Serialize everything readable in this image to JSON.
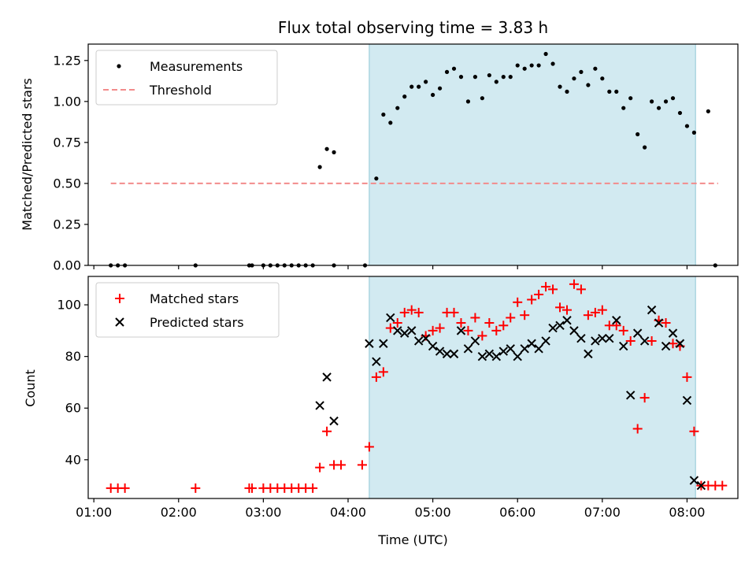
{
  "chart_data": [
    {
      "type": "scatter",
      "title": "Flux total observing time = 3.83 h",
      "xlabel": "",
      "ylabel": "Matched/Predicted stars",
      "xlim": [
        "00:56",
        "08:36"
      ],
      "ylim": [
        0,
        1.35
      ],
      "yticks": [
        "0.00",
        "0.25",
        "0.50",
        "0.75",
        "1.00",
        "1.25"
      ],
      "ytick_values": [
        0,
        0.25,
        0.5,
        0.75,
        1.0,
        1.25
      ],
      "observing_window": [
        "04:15",
        "08:06"
      ],
      "legend_position": "top-left",
      "series": [
        {
          "name": "Measurements",
          "color": "#000000",
          "marker": "dot",
          "x": [
            "01:12",
            "01:17",
            "01:22",
            "02:12",
            "02:50",
            "02:52",
            "03:00",
            "03:05",
            "03:10",
            "03:15",
            "03:20",
            "03:25",
            "03:30",
            "03:35",
            "03:50",
            "04:12",
            "04:20",
            "04:25",
            "04:30",
            "04:35",
            "04:40",
            "04:45",
            "04:50",
            "04:55",
            "05:00",
            "05:05",
            "05:10",
            "05:15",
            "05:20",
            "05:25",
            "05:30",
            "05:35",
            "05:40",
            "05:45",
            "05:50",
            "05:55",
            "06:00",
            "06:05",
            "06:10",
            "06:15",
            "06:20",
            "06:25",
            "06:30",
            "06:35",
            "06:40",
            "06:45",
            "06:50",
            "06:55",
            "07:00",
            "07:05",
            "07:10",
            "07:15",
            "07:20",
            "07:25",
            "07:30",
            "07:35",
            "07:40",
            "07:45",
            "07:50",
            "07:55",
            "08:00",
            "08:05",
            "08:15",
            "08:20",
            "03:40",
            "03:45",
            "03:50"
          ],
          "y": [
            0,
            0,
            0,
            0,
            0,
            0,
            0,
            0,
            0,
            0,
            0,
            0,
            0,
            0,
            0,
            0,
            0.53,
            0.92,
            0.87,
            0.96,
            1.03,
            1.09,
            1.09,
            1.12,
            1.04,
            1.08,
            1.18,
            1.2,
            1.15,
            1.0,
            1.15,
            1.02,
            1.16,
            1.12,
            1.15,
            1.15,
            1.22,
            1.2,
            1.22,
            1.22,
            1.29,
            1.23,
            1.09,
            1.06,
            1.14,
            1.18,
            1.1,
            1.2,
            1.14,
            1.06,
            1.06,
            0.96,
            1.02,
            0.8,
            0.72,
            1.0,
            0.96,
            1.0,
            1.02,
            0.93,
            0.85,
            0.81,
            0.94,
            0,
            0.6,
            0.71,
            0.69
          ]
        },
        {
          "name": "Threshold",
          "color": "#f28b8b",
          "style": "dashed",
          "x": [
            "01:12",
            "08:22"
          ],
          "y": [
            0.5,
            0.5
          ]
        }
      ]
    },
    {
      "type": "scatter",
      "title": "",
      "xlabel": "Time (UTC)",
      "ylabel": "Count",
      "xlim": [
        "00:56",
        "08:36"
      ],
      "ylim": [
        25,
        111
      ],
      "yticks": [
        "40",
        "60",
        "80",
        "100"
      ],
      "ytick_values": [
        40,
        60,
        80,
        100
      ],
      "xticks": [
        "01:00",
        "02:00",
        "03:00",
        "04:00",
        "05:00",
        "06:00",
        "07:00",
        "08:00"
      ],
      "observing_window": [
        "04:15",
        "08:06"
      ],
      "legend_position": "top-left",
      "series": [
        {
          "name": "Matched stars",
          "color": "#ff0000",
          "marker": "plus",
          "x": [
            "01:12",
            "01:17",
            "01:22",
            "02:12",
            "02:50",
            "02:52",
            "03:00",
            "03:05",
            "03:10",
            "03:15",
            "03:20",
            "03:25",
            "03:30",
            "03:35",
            "03:40",
            "03:45",
            "03:50",
            "03:55",
            "04:10",
            "04:15",
            "04:20",
            "04:25",
            "04:30",
            "04:35",
            "04:40",
            "04:45",
            "04:50",
            "04:55",
            "05:00",
            "05:05",
            "05:10",
            "05:15",
            "05:20",
            "05:25",
            "05:30",
            "05:35",
            "05:40",
            "05:45",
            "05:50",
            "05:55",
            "06:00",
            "06:05",
            "06:10",
            "06:15",
            "06:20",
            "06:25",
            "06:30",
            "06:35",
            "06:40",
            "06:45",
            "06:50",
            "06:55",
            "07:00",
            "07:05",
            "07:10",
            "07:15",
            "07:20",
            "07:25",
            "07:30",
            "07:35",
            "07:40",
            "07:45",
            "07:50",
            "07:55",
            "08:00",
            "08:05",
            "08:10",
            "08:15",
            "08:20",
            "08:25"
          ],
          "y": [
            29,
            29,
            29,
            29,
            29,
            29,
            29,
            29,
            29,
            29,
            29,
            29,
            29,
            29,
            37,
            51,
            38,
            38,
            38,
            45,
            72,
            74,
            91,
            93,
            97,
            98,
            97,
            88,
            90,
            91,
            97,
            97,
            93,
            90,
            95,
            88,
            93,
            90,
            92,
            95,
            101,
            96,
            102,
            104,
            107,
            106,
            99,
            98,
            108,
            106,
            96,
            97,
            98,
            92,
            92,
            90,
            86,
            52,
            64,
            86,
            94,
            93,
            85,
            84,
            72,
            51,
            30,
            30,
            30,
            30
          ]
        },
        {
          "name": "Predicted stars",
          "color": "#000000",
          "marker": "x",
          "x": [
            "03:40",
            "03:45",
            "03:50",
            "04:15",
            "04:20",
            "04:25",
            "04:30",
            "04:35",
            "04:40",
            "04:45",
            "04:50",
            "04:55",
            "05:00",
            "05:05",
            "05:10",
            "05:15",
            "05:20",
            "05:25",
            "05:30",
            "05:35",
            "05:40",
            "05:45",
            "05:50",
            "05:55",
            "06:00",
            "06:05",
            "06:10",
            "06:15",
            "06:20",
            "06:25",
            "06:30",
            "06:35",
            "06:40",
            "06:45",
            "06:50",
            "06:55",
            "07:00",
            "07:05",
            "07:10",
            "07:15",
            "07:20",
            "07:25",
            "07:30",
            "07:35",
            "07:40",
            "07:45",
            "07:50",
            "07:55",
            "08:00",
            "08:05",
            "08:10"
          ],
          "y": [
            61,
            72,
            55,
            85,
            78,
            85,
            95,
            90,
            89,
            90,
            86,
            87,
            84,
            82,
            81,
            81,
            90,
            83,
            86,
            80,
            81,
            80,
            82,
            83,
            80,
            83,
            85,
            83,
            86,
            91,
            92,
            94,
            90,
            87,
            81,
            86,
            87,
            87,
            94,
            84,
            65,
            89,
            86,
            98,
            93,
            84,
            89,
            85,
            63,
            32,
            30
          ]
        }
      ]
    }
  ]
}
